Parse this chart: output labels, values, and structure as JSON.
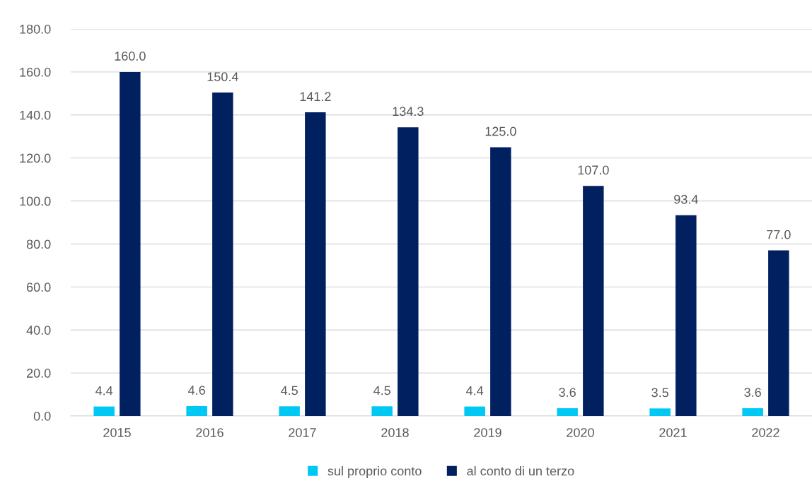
{
  "chart_data": {
    "type": "bar",
    "categories": [
      "2015",
      "2016",
      "2017",
      "2018",
      "2019",
      "2020",
      "2021",
      "2022"
    ],
    "series": [
      {
        "name": "sul proprio conto",
        "color": "#00c8f5",
        "values": [
          4.4,
          4.6,
          4.5,
          4.5,
          4.4,
          3.6,
          3.5,
          3.6
        ],
        "value_labels": [
          "4.4",
          "4.6",
          "4.5",
          "4.5",
          "4.4",
          "3.6",
          "3.5",
          "3.6"
        ]
      },
      {
        "name": "al conto di un terzo",
        "color": "#002060",
        "values": [
          160.0,
          150.4,
          141.2,
          134.3,
          125.0,
          107.0,
          93.4,
          77.0
        ],
        "value_labels": [
          "160.0",
          "150.4",
          "141.2",
          "134.3",
          "125.0",
          "107.0",
          "93.4",
          "77.0"
        ]
      }
    ],
    "ylim": [
      0,
      180
    ],
    "yticks": [
      {
        "value": 0,
        "label": "0.0"
      },
      {
        "value": 20,
        "label": "20.0"
      },
      {
        "value": 40,
        "label": "40.0"
      },
      {
        "value": 60,
        "label": "60.0"
      },
      {
        "value": 80,
        "label": "80.0"
      },
      {
        "value": 100,
        "label": "100.0"
      },
      {
        "value": 120,
        "label": "120.0"
      },
      {
        "value": 140,
        "label": "140.0"
      },
      {
        "value": 160,
        "label": "160.0"
      },
      {
        "value": 180,
        "label": "180.0"
      }
    ],
    "grid": "y",
    "legend": "bottom"
  }
}
